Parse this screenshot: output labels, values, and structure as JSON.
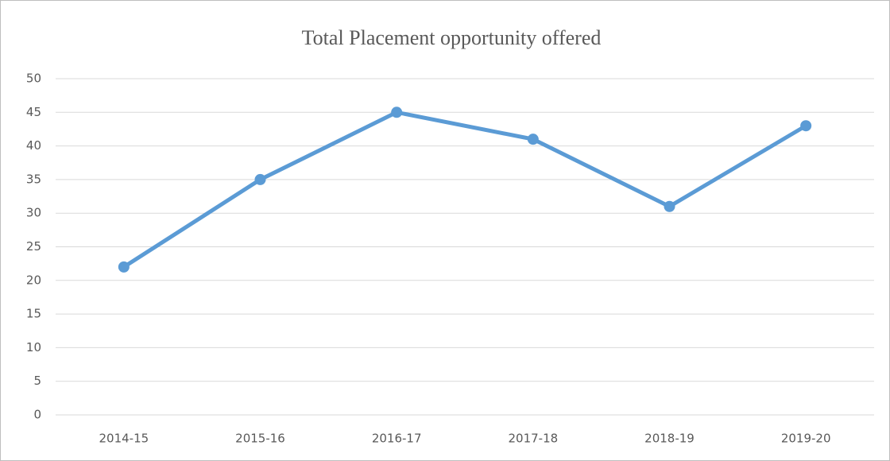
{
  "chart_data": {
    "type": "line",
    "title": "Total Placement opportunity offered",
    "categories": [
      "2014-15",
      "2015-16",
      "2016-17",
      "2017-18",
      "2018-19",
      "2019-20"
    ],
    "series": [
      {
        "name": "Total Placement opportunity offered",
        "color": "#5b9bd5",
        "values": [
          22,
          35,
          45,
          41,
          31,
          43
        ]
      }
    ],
    "ylim": [
      0,
      50
    ],
    "yticks": [
      0,
      5,
      10,
      15,
      20,
      25,
      30,
      35,
      40,
      45,
      50
    ],
    "grid": true
  }
}
